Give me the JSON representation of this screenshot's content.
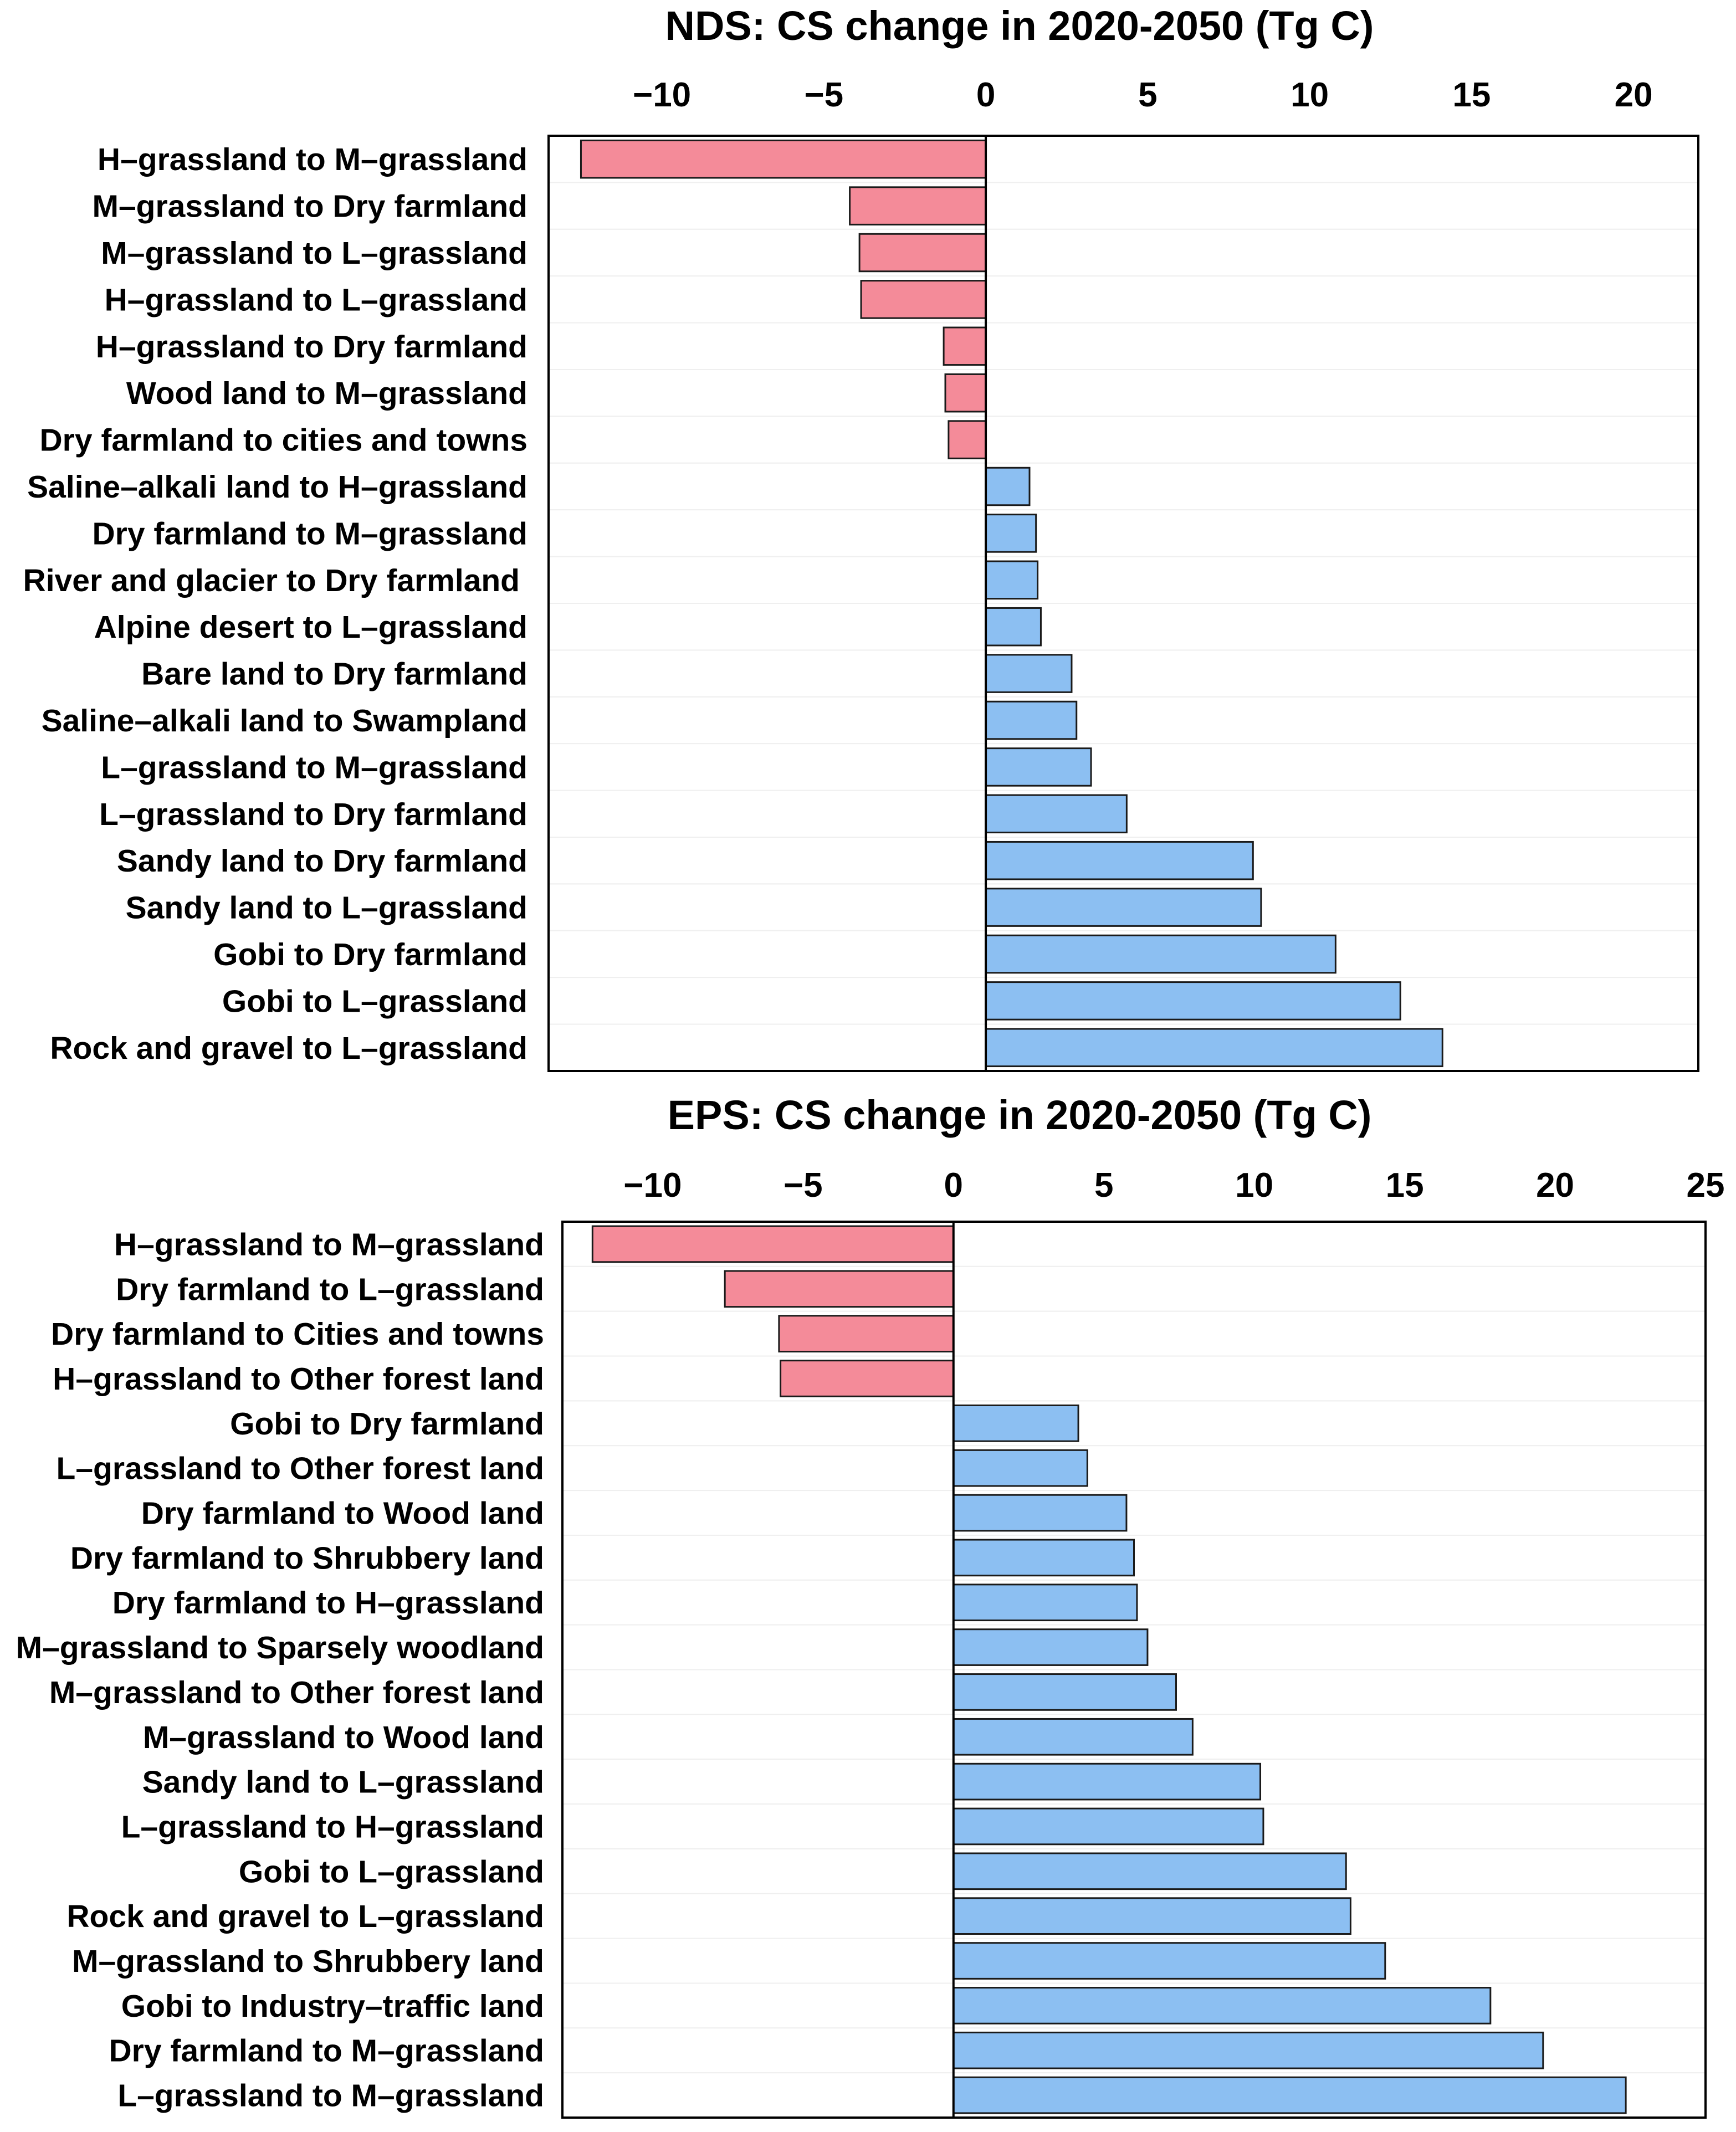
{
  "chart_data": [
    {
      "type": "bar",
      "orientation": "horizontal",
      "title": "NDS: CS change in 2020-2050 (Tg C)",
      "xlim": [
        -13.5,
        22
      ],
      "xticks": [
        -10,
        -5,
        0,
        5,
        10,
        15,
        20
      ],
      "tick_labels": [
        "−10",
        "−5",
        "0",
        "5",
        "10",
        "15",
        "20"
      ],
      "categories": [
        "H–grassland to M–grassland",
        "M–grassland to Dry farmland",
        "M–grassland to L–grassland",
        "H–grassland to L–grassland",
        "H–grassland to Dry farmland",
        "Wood land to M–grassland",
        "Dry farmland to cities and towns",
        "Saline–alkali land to H–grassland",
        "Dry farmland to M–grassland",
        "River and glacier to Dry farmland",
        "Alpine desert to L–grassland",
        "Bare land to Dry farmland",
        "Saline–alkali land to Swampland",
        "L–grassland to M–grassland",
        "L–grassland to Dry farmland",
        "Sandy land to Dry farmland",
        "Sandy land to L–grassland",
        "Gobi to Dry farmland",
        "Gobi to L–grassland",
        "Rock and gravel to L–grassland"
      ],
      "values": [
        -12.5,
        -4.2,
        -3.9,
        -3.85,
        -1.3,
        -1.25,
        -1.15,
        1.35,
        1.55,
        1.6,
        1.7,
        2.65,
        2.8,
        3.25,
        4.35,
        8.25,
        8.5,
        10.8,
        12.8,
        14.1
      ]
    },
    {
      "type": "bar",
      "orientation": "horizontal",
      "title": "EPS: CS change in 2020-2050 (Tg C)",
      "xlim": [
        -13,
        25
      ],
      "xticks": [
        -10,
        -5,
        0,
        5,
        10,
        15,
        20,
        25
      ],
      "tick_labels": [
        "−10",
        "−5",
        "0",
        "5",
        "10",
        "15",
        "20",
        "25"
      ],
      "categories": [
        "H–grassland to M–grassland",
        "Dry farmland to L–grassland",
        "Dry farmland to Cities and towns",
        "H–grassland to Other forest land",
        "Gobi to Dry farmland",
        "L–grassland to Other forest land",
        "Dry farmland to Wood land",
        "Dry farmland to Shrubbery land",
        "Dry farmland to H–grassland",
        "M–grassland to Sparsely woodland",
        "M–grassland to Other forest land",
        "M–grassland to Wood land",
        "Sandy land to L–grassland",
        "L–grassland to H–grassland",
        "Gobi to L–grassland",
        "Rock and gravel to L–grassland",
        "M–grassland to Shrubbery land",
        "Gobi to Industry–traffic land",
        "Dry farmland to M–grassland",
        "L–grassland to M–grassland"
      ],
      "values": [
        -12.0,
        -7.6,
        -5.8,
        -5.75,
        4.15,
        4.45,
        5.75,
        6.0,
        6.1,
        6.45,
        7.4,
        7.95,
        10.2,
        10.3,
        13.05,
        13.2,
        14.35,
        17.85,
        19.6,
        22.35
      ]
    }
  ],
  "colors": {
    "negative": "#f48b99",
    "positive": "#8cbff2"
  }
}
